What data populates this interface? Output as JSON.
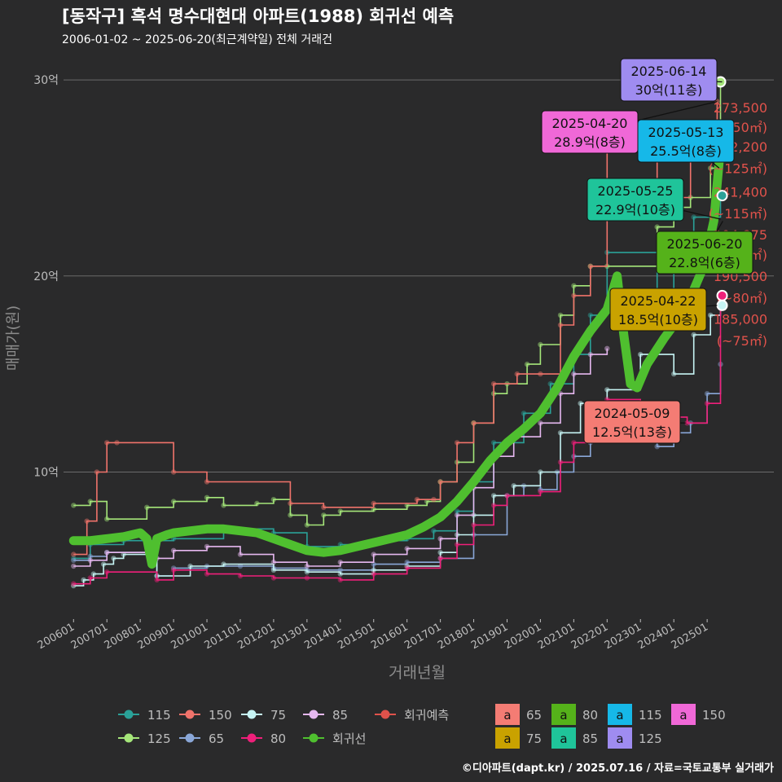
{
  "colors": {
    "background": "#2a2a2b",
    "grid": "#6b6b6b",
    "text": "#ffffff",
    "muted": "#bdbdbd",
    "s115": "#2aa198",
    "s125": "#a5e67a",
    "s150": "#f0736b",
    "s65": "#8aa7d8",
    "s75": "#c6f4f4",
    "s80": "#ef1f7a",
    "s85": "#e6b8f0",
    "regression": "#4fbf2f",
    "prediction": "#e0524b"
  },
  "header": {
    "title": "[동작구] 흑석 명수대현대 아파트(1988) 회귀선 예측",
    "subtitle": "2006-01-02 ~ 2025-06-20(최근계약일) 전체 거래건"
  },
  "footer": {
    "credit": "©디아파트(dapt.kr) / 2025.07.16 / 자료=국토교통부 실거래가"
  },
  "chart_data": {
    "type": "line",
    "xlabel": "거래년월",
    "ylabel": "매매가(원)",
    "x_ticks": [
      "200601",
      "200701",
      "200801",
      "200901",
      "201001",
      "201101",
      "201201",
      "201301",
      "201401",
      "201501",
      "201601",
      "201701",
      "201801",
      "201901",
      "202001",
      "202101",
      "202201",
      "202301",
      "202401",
      "202501"
    ],
    "y_ticks": [
      {
        "value": 10,
        "label": "10억"
      },
      {
        "value": 20,
        "label": "20억"
      },
      {
        "value": 30,
        "label": "30억"
      }
    ],
    "xlim": [
      2005.7,
      2027.0
    ],
    "ylim": [
      2.5,
      31.5
    ],
    "series": [
      {
        "name": "115",
        "points": [
          [
            2006.0,
            5.6
          ],
          [
            2006.5,
            6.3
          ],
          [
            2007.5,
            6.5
          ],
          [
            2009.0,
            6.6
          ],
          [
            2010.5,
            7.1
          ],
          [
            2012.0,
            6.9
          ],
          [
            2013.0,
            6.2
          ],
          [
            2014.0,
            6.3
          ],
          [
            2015.0,
            6.5
          ],
          [
            2016.0,
            6.6
          ],
          [
            2016.8,
            7.0
          ],
          [
            2017.5,
            8.0
          ],
          [
            2018.0,
            9.5
          ],
          [
            2018.6,
            11.5
          ],
          [
            2019.5,
            13.0
          ],
          [
            2020.3,
            14.5
          ],
          [
            2021.0,
            16.0
          ],
          [
            2021.5,
            18.0
          ],
          [
            2022.0,
            21.2
          ],
          [
            2023.5,
            19.0
          ],
          [
            2024.0,
            22.0
          ],
          [
            2024.6,
            23.0
          ],
          [
            2025.4,
            24.1
          ]
        ]
      },
      {
        "name": "125",
        "points": [
          [
            2006.0,
            8.3
          ],
          [
            2006.5,
            8.5
          ],
          [
            2007.0,
            7.6
          ],
          [
            2008.2,
            8.2
          ],
          [
            2009.0,
            8.5
          ],
          [
            2010.0,
            8.7
          ],
          [
            2010.5,
            8.3
          ],
          [
            2011.5,
            8.4
          ],
          [
            2012.0,
            8.6
          ],
          [
            2012.5,
            7.8
          ],
          [
            2013.0,
            7.3
          ],
          [
            2013.5,
            7.8
          ],
          [
            2014.0,
            8.0
          ],
          [
            2015.0,
            8.1
          ],
          [
            2016.0,
            8.3
          ],
          [
            2016.6,
            8.5
          ],
          [
            2017.0,
            9.5
          ],
          [
            2017.5,
            10.5
          ],
          [
            2018.0,
            12.5
          ],
          [
            2018.6,
            14.0
          ],
          [
            2019.0,
            14.5
          ],
          [
            2019.6,
            15.5
          ],
          [
            2020.0,
            16.5
          ],
          [
            2020.6,
            18.0
          ],
          [
            2021.0,
            19.5
          ],
          [
            2021.5,
            20.5
          ],
          [
            2022.0,
            20.5
          ],
          [
            2023.5,
            22.5
          ],
          [
            2024.0,
            23.5
          ],
          [
            2024.5,
            24.0
          ],
          [
            2025.1,
            25.5
          ],
          [
            2025.4,
            29.9
          ]
        ]
      },
      {
        "name": "150",
        "points": [
          [
            2006.0,
            5.8
          ],
          [
            2006.4,
            7.5
          ],
          [
            2006.7,
            10.0
          ],
          [
            2007.0,
            11.5
          ],
          [
            2007.3,
            11.5
          ],
          [
            2009.0,
            10.0
          ],
          [
            2010.0,
            9.5
          ],
          [
            2012.5,
            8.4
          ],
          [
            2013.5,
            8.2
          ],
          [
            2015.0,
            8.4
          ],
          [
            2016.3,
            8.6
          ],
          [
            2016.8,
            8.6
          ],
          [
            2017.0,
            9.5
          ],
          [
            2017.5,
            11.5
          ],
          [
            2018.0,
            12.5
          ],
          [
            2018.6,
            14.5
          ],
          [
            2019.3,
            15.0
          ],
          [
            2020.0,
            15.0
          ],
          [
            2020.6,
            17.5
          ],
          [
            2021.0,
            19.0
          ],
          [
            2021.5,
            20.5
          ],
          [
            2022.0,
            27.5
          ],
          [
            2023.5,
            24.0
          ],
          [
            2024.5,
            26.0
          ],
          [
            2025.3,
            28.9
          ]
        ]
      },
      {
        "name": "65",
        "points": [
          [
            2006.0,
            5.5
          ],
          [
            2006.5,
            5.7
          ],
          [
            2007.0,
            5.9
          ],
          [
            2008.5,
            4.7
          ],
          [
            2009.0,
            5.1
          ],
          [
            2010.0,
            5.2
          ],
          [
            2011.0,
            5.2
          ],
          [
            2012.0,
            5.1
          ],
          [
            2013.0,
            5.0
          ],
          [
            2014.0,
            5.0
          ],
          [
            2015.0,
            5.3
          ],
          [
            2016.0,
            5.4
          ],
          [
            2017.0,
            5.6
          ],
          [
            2018.0,
            6.8
          ],
          [
            2019.0,
            8.8
          ],
          [
            2019.5,
            9.3
          ],
          [
            2020.0,
            9.1
          ],
          [
            2020.5,
            10.0
          ],
          [
            2021.0,
            10.8
          ],
          [
            2021.5,
            11.5
          ],
          [
            2022.0,
            12.0
          ],
          [
            2023.5,
            11.3
          ],
          [
            2024.0,
            12.0
          ],
          [
            2024.5,
            12.5
          ],
          [
            2025.0,
            14.0
          ],
          [
            2025.4,
            15.5
          ]
        ]
      },
      {
        "name": "75",
        "points": [
          [
            2006.0,
            4.2
          ],
          [
            2006.3,
            4.5
          ],
          [
            2006.6,
            4.8
          ],
          [
            2006.9,
            5.3
          ],
          [
            2007.2,
            5.6
          ],
          [
            2007.5,
            5.8
          ],
          [
            2008.5,
            4.7
          ],
          [
            2009.5,
            5.2
          ],
          [
            2010.5,
            5.3
          ],
          [
            2012.0,
            5.0
          ],
          [
            2013.0,
            4.9
          ],
          [
            2014.0,
            4.8
          ],
          [
            2015.0,
            5.0
          ],
          [
            2016.0,
            5.2
          ],
          [
            2017.0,
            5.9
          ],
          [
            2017.5,
            6.8
          ],
          [
            2018.0,
            7.8
          ],
          [
            2018.6,
            8.8
          ],
          [
            2019.2,
            9.3
          ],
          [
            2020.0,
            10.0
          ],
          [
            2020.6,
            12.0
          ],
          [
            2021.2,
            13.5
          ],
          [
            2022.0,
            14.2
          ],
          [
            2023.0,
            16.0
          ],
          [
            2024.0,
            15.0
          ],
          [
            2024.6,
            17.0
          ],
          [
            2025.1,
            18.0
          ],
          [
            2025.4,
            18.5
          ]
        ]
      },
      {
        "name": "80",
        "points": [
          [
            2006.0,
            4.3
          ],
          [
            2006.5,
            4.6
          ],
          [
            2007.0,
            4.9
          ],
          [
            2008.5,
            4.5
          ],
          [
            2009.0,
            5.0
          ],
          [
            2010.0,
            4.8
          ],
          [
            2011.0,
            4.7
          ],
          [
            2012.0,
            4.6
          ],
          [
            2013.0,
            4.6
          ],
          [
            2014.0,
            4.5
          ],
          [
            2015.0,
            4.8
          ],
          [
            2016.0,
            5.1
          ],
          [
            2017.0,
            5.6
          ],
          [
            2017.5,
            6.3
          ],
          [
            2018.0,
            7.3
          ],
          [
            2018.6,
            8.3
          ],
          [
            2019.0,
            8.8
          ],
          [
            2020.0,
            9.0
          ],
          [
            2020.6,
            10.5
          ],
          [
            2021.0,
            11.5
          ],
          [
            2021.5,
            13.0
          ],
          [
            2022.0,
            13.7
          ],
          [
            2023.0,
            13.0
          ],
          [
            2023.7,
            12.8
          ],
          [
            2024.4,
            12.5
          ],
          [
            2025.0,
            13.5
          ],
          [
            2025.4,
            19.0
          ]
        ]
      },
      {
        "name": "85",
        "points": [
          [
            2006.0,
            5.2
          ],
          [
            2006.5,
            5.5
          ],
          [
            2007.0,
            5.9
          ],
          [
            2008.5,
            5.6
          ],
          [
            2009.0,
            6.0
          ],
          [
            2010.0,
            6.2
          ],
          [
            2011.0,
            5.8
          ],
          [
            2012.0,
            5.4
          ],
          [
            2013.0,
            5.2
          ],
          [
            2014.0,
            5.4
          ],
          [
            2015.0,
            5.8
          ],
          [
            2016.0,
            6.1
          ],
          [
            2017.0,
            6.6
          ],
          [
            2017.5,
            7.8
          ],
          [
            2018.0,
            9.2
          ],
          [
            2018.6,
            10.8
          ],
          [
            2019.2,
            11.8
          ],
          [
            2020.0,
            12.5
          ],
          [
            2020.6,
            14.0
          ],
          [
            2021.0,
            15.0
          ],
          [
            2021.5,
            16.0
          ],
          [
            2022.0,
            16.3
          ]
        ]
      },
      {
        "name": "회귀선",
        "points": [
          [
            2006.0,
            6.5
          ],
          [
            2006.5,
            6.5
          ],
          [
            2007.0,
            6.6
          ],
          [
            2007.5,
            6.7
          ],
          [
            2008.0,
            6.9
          ],
          [
            2008.2,
            6.6
          ],
          [
            2008.35,
            5.3
          ],
          [
            2008.5,
            6.6
          ],
          [
            2008.8,
            6.8
          ],
          [
            2009.0,
            6.9
          ],
          [
            2009.5,
            7.0
          ],
          [
            2010.0,
            7.1
          ],
          [
            2010.5,
            7.1
          ],
          [
            2011.0,
            7.0
          ],
          [
            2011.5,
            6.9
          ],
          [
            2012.0,
            6.6
          ],
          [
            2012.5,
            6.3
          ],
          [
            2013.0,
            6.0
          ],
          [
            2013.5,
            5.9
          ],
          [
            2014.0,
            6.0
          ],
          [
            2014.5,
            6.2
          ],
          [
            2015.0,
            6.4
          ],
          [
            2015.5,
            6.6
          ],
          [
            2016.0,
            6.8
          ],
          [
            2016.5,
            7.2
          ],
          [
            2017.0,
            7.7
          ],
          [
            2017.5,
            8.5
          ],
          [
            2018.0,
            9.5
          ],
          [
            2018.5,
            10.6
          ],
          [
            2019.0,
            11.5
          ],
          [
            2019.5,
            12.2
          ],
          [
            2020.0,
            13.0
          ],
          [
            2020.5,
            14.3
          ],
          [
            2021.0,
            15.9
          ],
          [
            2021.5,
            17.2
          ],
          [
            2022.0,
            18.3
          ],
          [
            2022.3,
            20.0
          ],
          [
            2022.5,
            17.0
          ],
          [
            2022.7,
            14.5
          ],
          [
            2022.9,
            14.3
          ],
          [
            2023.2,
            15.5
          ],
          [
            2023.7,
            16.8
          ],
          [
            2024.0,
            17.5
          ],
          [
            2024.3,
            18.3
          ],
          [
            2024.6,
            19.3
          ],
          [
            2024.9,
            20.5
          ],
          [
            2025.2,
            22.8
          ],
          [
            2025.45,
            27.5
          ]
        ]
      }
    ],
    "prediction_labels": [
      {
        "text": "273,500",
        "y": 28.6
      },
      {
        "text": "(~150㎡)",
        "y": 27.6
      },
      {
        "text": "272,200",
        "y": 26.6
      },
      {
        "text": "(~125㎡)",
        "y": 25.5
      },
      {
        "text": "241,400",
        "y": 24.3
      },
      {
        "text": "(~115㎡)",
        "y": 23.2
      },
      {
        "text": "204,875",
        "y": 22.1
      },
      {
        "text": "(~85㎡)",
        "y": 21.1
      },
      {
        "text": "190,500",
        "y": 20.0
      },
      {
        "text": "(~80㎡)",
        "y": 18.9
      },
      {
        "text": "185,000",
        "y": 17.8
      },
      {
        "text": "(~75㎡)",
        "y": 16.7
      }
    ],
    "callouts": [
      {
        "date": "2025-06-14",
        "value": "30억(11층)",
        "series": "125",
        "bg": "#9f8cf0",
        "x": 2025.45,
        "y": 29.9
      },
      {
        "date": "2025-04-20",
        "value": "28.9억(8층)",
        "series": "150",
        "bg": "#f068d7",
        "x": 2025.3,
        "y": 28.9
      },
      {
        "date": "2025-05-13",
        "value": "25.5억(8층)",
        "series": "115",
        "bg": "#16b8e8",
        "x": 2025.36,
        "y": 25.5
      },
      {
        "date": "2025-05-25",
        "value": "22.9억(10층)",
        "series": "85",
        "bg": "#1fc49a",
        "x": 2025.4,
        "y": 22.9
      },
      {
        "date": "2025-06-20",
        "value": "22.8억(6층)",
        "series": "80",
        "bg": "#55b21a",
        "x": 2025.47,
        "y": 22.8
      },
      {
        "date": "2025-04-22",
        "value": "18.5억(10층)",
        "series": "75",
        "bg": "#c9a200",
        "x": 2025.3,
        "y": 18.5
      },
      {
        "date": "2024-05-09",
        "value": "12.5억(13층)",
        "series": "65",
        "bg": "#f47c74",
        "x": 2024.35,
        "y": 12.5
      }
    ]
  },
  "legend": {
    "lines": [
      {
        "label": "115",
        "color": "#2aa198"
      },
      {
        "label": "150",
        "color": "#f0736b"
      },
      {
        "label": "75",
        "color": "#c6f4f4"
      },
      {
        "label": "85",
        "color": "#e6b8f0"
      },
      {
        "label": "회귀예측",
        "color": "#e0524b"
      },
      {
        "label": "125",
        "color": "#a5e67a"
      },
      {
        "label": "65",
        "color": "#8aa7d8"
      },
      {
        "label": "80",
        "color": "#ef1f7a"
      },
      {
        "label": "회귀선",
        "color": "#4fbf2f"
      }
    ],
    "boxes": [
      {
        "label": "65",
        "color": "#f47c74",
        "glyph": "a"
      },
      {
        "label": "80",
        "color": "#55b21a",
        "glyph": "a"
      },
      {
        "label": "115",
        "color": "#16b8e8",
        "glyph": "a"
      },
      {
        "label": "150",
        "color": "#f068d7",
        "glyph": "a"
      },
      {
        "label": "75",
        "color": "#c9a200",
        "glyph": "a"
      },
      {
        "label": "85",
        "color": "#1fc49a",
        "glyph": "a"
      },
      {
        "label": "125",
        "color": "#9f8cf0",
        "glyph": "a"
      }
    ]
  }
}
